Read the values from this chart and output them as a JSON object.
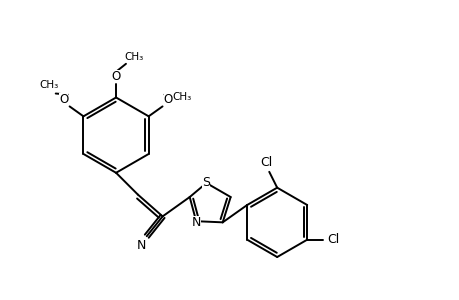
{
  "bg_color": "#ffffff",
  "line_color": "#000000",
  "bond_lw": 1.4,
  "figsize": [
    4.6,
    3.0
  ],
  "dpi": 100,
  "methoxy_label": "O",
  "methyl_label": "CH₃",
  "S_label": "S",
  "N_label": "N",
  "Cl_label": "Cl",
  "nitrile_N_label": "N"
}
